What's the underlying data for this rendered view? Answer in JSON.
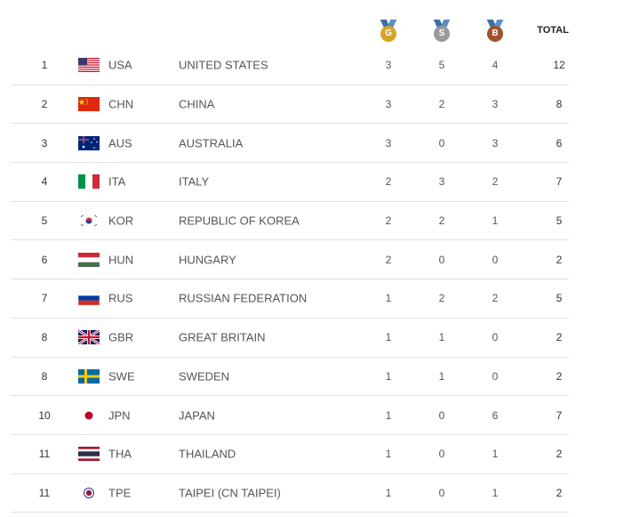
{
  "header": {
    "gold_label": "G",
    "silver_label": "S",
    "bronze_label": "B",
    "total_label": "TOTAL"
  },
  "rows": [
    {
      "rank": "1",
      "code": "USA",
      "name": "UNITED STATES",
      "gold": "3",
      "silver": "5",
      "bronze": "4",
      "total": "12"
    },
    {
      "rank": "2",
      "code": "CHN",
      "name": "CHINA",
      "gold": "3",
      "silver": "2",
      "bronze": "3",
      "total": "8"
    },
    {
      "rank": "3",
      "code": "AUS",
      "name": "AUSTRALIA",
      "gold": "3",
      "silver": "0",
      "bronze": "3",
      "total": "6"
    },
    {
      "rank": "4",
      "code": "ITA",
      "name": "ITALY",
      "gold": "2",
      "silver": "3",
      "bronze": "2",
      "total": "7"
    },
    {
      "rank": "5",
      "code": "KOR",
      "name": "REPUBLIC OF KOREA",
      "gold": "2",
      "silver": "2",
      "bronze": "1",
      "total": "5"
    },
    {
      "rank": "6",
      "code": "HUN",
      "name": "HUNGARY",
      "gold": "2",
      "silver": "0",
      "bronze": "0",
      "total": "2"
    },
    {
      "rank": "7",
      "code": "RUS",
      "name": "RUSSIAN FEDERATION",
      "gold": "1",
      "silver": "2",
      "bronze": "2",
      "total": "5"
    },
    {
      "rank": "8",
      "code": "GBR",
      "name": "GREAT BRITAIN",
      "gold": "1",
      "silver": "1",
      "bronze": "0",
      "total": "2"
    },
    {
      "rank": "8",
      "code": "SWE",
      "name": "SWEDEN",
      "gold": "1",
      "silver": "1",
      "bronze": "0",
      "total": "2"
    },
    {
      "rank": "10",
      "code": "JPN",
      "name": "JAPAN",
      "gold": "1",
      "silver": "0",
      "bronze": "6",
      "total": "7"
    },
    {
      "rank": "11",
      "code": "THA",
      "name": "THAILAND",
      "gold": "1",
      "silver": "0",
      "bronze": "1",
      "total": "2"
    },
    {
      "rank": "11",
      "code": "TPE",
      "name": "TAIPEI (CN TAIPEI)",
      "gold": "1",
      "silver": "0",
      "bronze": "1",
      "total": "2"
    }
  ],
  "colors": {
    "gold": "#d8a326",
    "silver": "#9a9a9a",
    "bronze": "#a0522d",
    "divider": "#e2e2e2"
  }
}
